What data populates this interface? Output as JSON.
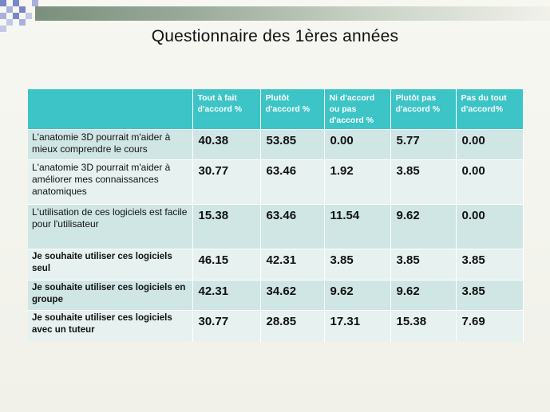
{
  "title": "Questionnaire des 1ères années",
  "colors": {
    "header_bg": "#3cc4c6",
    "row_dark": "#cfe6e4",
    "row_light": "#e6f1f0",
    "accent_bar": "#7a8f7c",
    "checker": "#7b86c7"
  },
  "table": {
    "headers": [
      "",
      "Tout à fait d'accord %",
      "Plutôt d'accord %",
      "Ni d'accord ou pas d'accord %",
      "Plutôt pas d'accord %",
      "Pas du tout d'accord%"
    ],
    "rows": [
      {
        "question": "L'anatomie 3D pourrait m'aider à mieux comprendre le cours",
        "values": [
          "40.38",
          "53.85",
          "0.00",
          "5.77",
          "0.00"
        ]
      },
      {
        "question": "L'anatomie 3D pourrait m'aider à améliorer mes connaissances anatomiques",
        "values": [
          "30.77",
          "63.46",
          "1.92",
          "3.85",
          "0.00"
        ]
      },
      {
        "question": "L'utilisation de ces logiciels est facile pour l'utilisateur",
        "values": [
          "15.38",
          "63.46",
          "11.54",
          "9.62",
          "0.00"
        ]
      },
      {
        "question": "Je souhaite utiliser ces logiciels seul",
        "values": [
          "46.15",
          "42.31",
          "3.85",
          "3.85",
          "3.85"
        ]
      },
      {
        "question": "Je souhaite utiliser ces logiciels en groupe",
        "values": [
          "42.31",
          "34.62",
          "9.62",
          "9.62",
          "3.85"
        ]
      },
      {
        "question": "Je souhaite utiliser ces logiciels avec un tuteur",
        "values": [
          "30.77",
          "28.85",
          "17.31",
          "15.38",
          "7.69"
        ]
      }
    ]
  }
}
